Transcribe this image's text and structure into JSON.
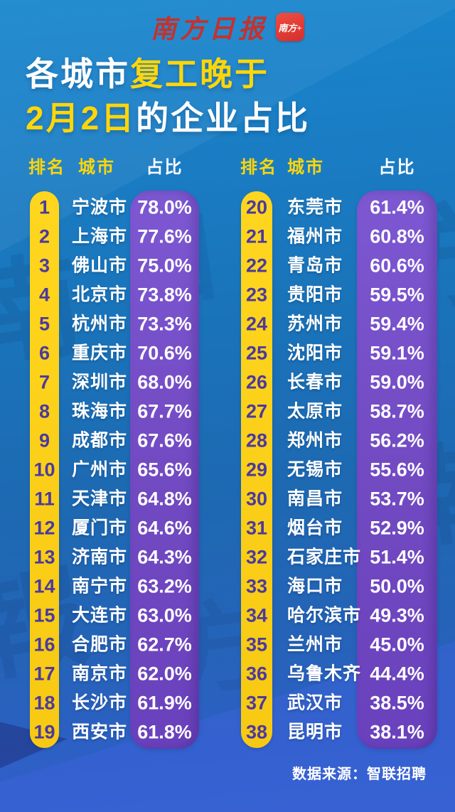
{
  "masthead": {
    "newspaper_logo": "南方日报",
    "app_badge": "南方+"
  },
  "title": {
    "part1": "各城市",
    "part2": "复工晚于",
    "part3": "2月2日",
    "part4": "的企业占比"
  },
  "table": {
    "headers": {
      "rank": "排名",
      "city": "城市",
      "share": "占比"
    }
  },
  "footer": {
    "source": "数据来源：智联招聘"
  },
  "watermark": {
    "g1": "南",
    "g2": "方",
    "g3": "日",
    "g4": "報",
    "g5": "南",
    "g6": "方"
  },
  "colors": {
    "background_top": "#1787CE",
    "background_bottom": "#3462CD",
    "accent_yellow": "#FFD60A",
    "rank_pill_yellow": "#FBCF18",
    "share_pill_purple": "#7149C1",
    "rank_number_text": "#4B3A9E",
    "logo_red": "#C5312D",
    "text_white": "#FFFFFF"
  },
  "chart_data": {
    "type": "table",
    "title": "各城市复工晚于2月2日的企业占比",
    "columns": [
      "排名",
      "城市",
      "占比"
    ],
    "source": "数据来源：智联招聘",
    "layout": "two column halves: ranks 1-19 left, ranks 20-38 right",
    "rows": [
      [
        1,
        "宁波市",
        "78.0%"
      ],
      [
        2,
        "上海市",
        "77.6%"
      ],
      [
        3,
        "佛山市",
        "75.0%"
      ],
      [
        4,
        "北京市",
        "73.8%"
      ],
      [
        5,
        "杭州市",
        "73.3%"
      ],
      [
        6,
        "重庆市",
        "70.6%"
      ],
      [
        7,
        "深圳市",
        "68.0%"
      ],
      [
        8,
        "珠海市",
        "67.7%"
      ],
      [
        9,
        "成都市",
        "67.6%"
      ],
      [
        10,
        "广州市",
        "65.6%"
      ],
      [
        11,
        "天津市",
        "64.8%"
      ],
      [
        12,
        "厦门市",
        "64.6%"
      ],
      [
        13,
        "济南市",
        "64.3%"
      ],
      [
        14,
        "南宁市",
        "63.2%"
      ],
      [
        15,
        "大连市",
        "63.0%"
      ],
      [
        16,
        "合肥市",
        "62.7%"
      ],
      [
        17,
        "南京市",
        "62.0%"
      ],
      [
        18,
        "长沙市",
        "61.9%"
      ],
      [
        19,
        "西安市",
        "61.8%"
      ],
      [
        20,
        "东莞市",
        "61.4%"
      ],
      [
        21,
        "福州市",
        "60.8%"
      ],
      [
        22,
        "青岛市",
        "60.6%"
      ],
      [
        23,
        "贵阳市",
        "59.5%"
      ],
      [
        24,
        "苏州市",
        "59.4%"
      ],
      [
        25,
        "沈阳市",
        "59.1%"
      ],
      [
        26,
        "长春市",
        "59.0%"
      ],
      [
        27,
        "太原市",
        "58.7%"
      ],
      [
        28,
        "郑州市",
        "56.2%"
      ],
      [
        29,
        "无锡市",
        "55.6%"
      ],
      [
        30,
        "南昌市",
        "53.7%"
      ],
      [
        31,
        "烟台市",
        "52.9%"
      ],
      [
        32,
        "石家庄市",
        "51.4%"
      ],
      [
        33,
        "海口市",
        "50.0%"
      ],
      [
        34,
        "哈尔滨市",
        "49.3%"
      ],
      [
        35,
        "兰州市",
        "45.0%"
      ],
      [
        36,
        "乌鲁木齐",
        "44.4%"
      ],
      [
        37,
        "武汉市",
        "38.5%"
      ],
      [
        38,
        "昆明市",
        "38.1%"
      ]
    ]
  }
}
